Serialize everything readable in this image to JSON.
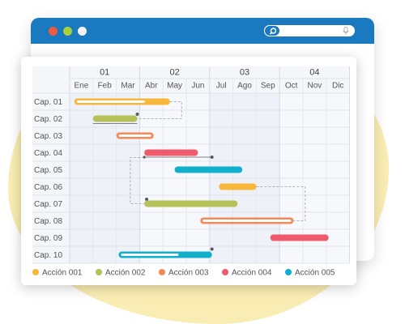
{
  "window": {
    "search_placeholder": ""
  },
  "colors": {
    "titlebar": "#1b79bf",
    "accion_001": "#f9b739",
    "accion_002": "#b6c157",
    "accion_003": "#f48a5a",
    "accion_004": "#ef5b6a",
    "accion_005": "#10afcb"
  },
  "chart_data": {
    "type": "gantt",
    "quarters": [
      "01",
      "02",
      "03",
      "04"
    ],
    "months": [
      "Ene",
      "Feb",
      "Mar",
      "Abr",
      "May",
      "Jun",
      "Jul",
      "Ago",
      "Sep",
      "Oct",
      "Nov",
      "Dic"
    ],
    "rows": [
      "Cap. 01",
      "Cap. 02",
      "Cap. 03",
      "Cap. 04",
      "Cap. 05",
      "Cap. 06",
      "Cap. 07",
      "Cap. 08",
      "Cap. 09",
      "Cap. 10"
    ],
    "tasks": [
      {
        "row": 0,
        "start": 0.2,
        "end": 4.3,
        "action": 0,
        "progress": 0.75
      },
      {
        "row": 1,
        "start": 1.0,
        "end": 2.9,
        "action": 1,
        "progress": 1.0
      },
      {
        "row": 2,
        "start": 2.0,
        "end": 3.6,
        "action": 2,
        "progress": 0.0
      },
      {
        "row": 3,
        "start": 3.2,
        "end": 5.5,
        "action": 3,
        "progress": 1.0
      },
      {
        "row": 4,
        "start": 4.5,
        "end": 7.4,
        "action": 4,
        "progress": 1.0
      },
      {
        "row": 5,
        "start": 6.4,
        "end": 8.0,
        "action": 0,
        "progress": 1.0
      },
      {
        "row": 6,
        "start": 3.2,
        "end": 7.2,
        "action": 1,
        "progress": 1.0
      },
      {
        "row": 7,
        "start": 5.6,
        "end": 9.6,
        "action": 2,
        "progress": 0.0
      },
      {
        "row": 8,
        "start": 8.6,
        "end": 11.1,
        "action": 3,
        "progress": 1.0
      },
      {
        "row": 9,
        "start": 2.1,
        "end": 6.1,
        "action": 4,
        "progress": 0.65
      }
    ],
    "legend": [
      "Acción 001",
      "Acción 002",
      "Acción 003",
      "Acción 004",
      "Acción 005"
    ]
  }
}
